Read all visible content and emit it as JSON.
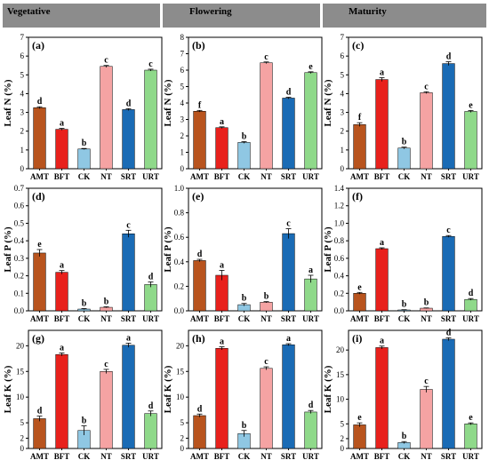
{
  "headers": [
    "Vegetative",
    "Flowering",
    "Maturity"
  ],
  "colors": {
    "header_bg": "#8c8c8c",
    "AMT": "#b8541e",
    "BFT": "#e8211c",
    "CK": "#8fc7e3",
    "NT": "#f5a3a3",
    "SRT": "#1a6bb5",
    "URT": "#8fd98a"
  },
  "chart_data": [
    {
      "type": "bar",
      "panel": "(a)",
      "ylabel": "Leaf N (%)",
      "ylim": [
        0,
        7
      ],
      "yticks": [
        0,
        1,
        2,
        3,
        4,
        5,
        6,
        7
      ],
      "categories": [
        "AMT",
        "BFT",
        "CK",
        "NT",
        "SRT",
        "URT"
      ],
      "values": [
        3.25,
        2.1,
        1.05,
        5.45,
        3.15,
        5.25
      ],
      "errors": [
        0.05,
        0.05,
        0.03,
        0.05,
        0.05,
        0.05
      ],
      "letters": [
        "d",
        "a",
        "b",
        "c",
        "d",
        "c"
      ]
    },
    {
      "type": "bar",
      "panel": "(b)",
      "ylabel": "Leaf N (%)",
      "ylim": [
        0,
        8
      ],
      "yticks": [
        0,
        1,
        2,
        3,
        4,
        5,
        6,
        7,
        8
      ],
      "categories": [
        "AMT",
        "BFT",
        "CK",
        "NT",
        "SRT",
        "URT"
      ],
      "values": [
        3.5,
        2.5,
        1.6,
        6.45,
        4.3,
        5.85
      ],
      "errors": [
        0.05,
        0.05,
        0.05,
        0.05,
        0.05,
        0.05
      ],
      "letters": [
        "f",
        "a",
        "b",
        "c",
        "d",
        "e"
      ]
    },
    {
      "type": "bar",
      "panel": "(c)",
      "ylabel": "Leaf N (%)",
      "ylim": [
        0,
        7
      ],
      "yticks": [
        0,
        1,
        2,
        3,
        4,
        5,
        6,
        7
      ],
      "categories": [
        "AMT",
        "BFT",
        "CK",
        "NT",
        "SRT",
        "URT"
      ],
      "values": [
        2.35,
        4.75,
        1.1,
        4.05,
        5.6,
        3.05
      ],
      "errors": [
        0.1,
        0.1,
        0.05,
        0.05,
        0.1,
        0.05
      ],
      "letters": [
        "f",
        "a",
        "b",
        "c",
        "d",
        "e"
      ]
    },
    {
      "type": "bar",
      "panel": "(d)",
      "ylabel": "Leaf P (%)",
      "ylim": [
        0,
        0.7
      ],
      "yticks": [
        0.0,
        0.1,
        0.2,
        0.3,
        0.4,
        0.5,
        0.6,
        0.7
      ],
      "categories": [
        "AMT",
        "BFT",
        "CK",
        "NT",
        "SRT",
        "URT"
      ],
      "values": [
        0.33,
        0.22,
        0.01,
        0.02,
        0.44,
        0.15
      ],
      "errors": [
        0.02,
        0.01,
        0.003,
        0.003,
        0.02,
        0.015
      ],
      "letters": [
        "e",
        "a",
        "b",
        "b",
        "c",
        "d"
      ]
    },
    {
      "type": "bar",
      "panel": "(e)",
      "ylabel": "Leaf P (%)",
      "ylim": [
        0,
        1.0
      ],
      "yticks": [
        0.0,
        0.2,
        0.4,
        0.6,
        0.8,
        1.0
      ],
      "categories": [
        "AMT",
        "BFT",
        "CK",
        "NT",
        "SRT",
        "URT"
      ],
      "values": [
        0.41,
        0.29,
        0.05,
        0.07,
        0.63,
        0.26
      ],
      "errors": [
        0.01,
        0.04,
        0.01,
        0.005,
        0.04,
        0.03
      ],
      "letters": [
        "d",
        "a",
        "b",
        "b",
        "c",
        "a"
      ]
    },
    {
      "type": "bar",
      "panel": "(f)",
      "ylabel": "Leaf P (%)",
      "ylim": [
        0,
        1.4
      ],
      "yticks": [
        0.0,
        0.2,
        0.4,
        0.6,
        0.8,
        1.0,
        1.2,
        1.4
      ],
      "categories": [
        "AMT",
        "BFT",
        "CK",
        "NT",
        "SRT",
        "URT"
      ],
      "values": [
        0.2,
        0.71,
        0.01,
        0.03,
        0.85,
        0.13
      ],
      "errors": [
        0.01,
        0.01,
        0.003,
        0.003,
        0.01,
        0.01
      ],
      "letters": [
        "e",
        "a",
        "b",
        "b",
        "c",
        "d"
      ]
    },
    {
      "type": "bar",
      "panel": "(g)",
      "ylabel": "Leaf K (%)",
      "ylim": [
        0,
        23
      ],
      "yticks": [
        0,
        2,
        5,
        10,
        15,
        20
      ],
      "categories": [
        "AMT",
        "BFT",
        "CK",
        "NT",
        "SRT",
        "URT"
      ],
      "values": [
        5.8,
        18.3,
        3.5,
        15.0,
        20.1,
        6.8
      ],
      "errors": [
        0.5,
        0.3,
        0.9,
        0.4,
        0.4,
        0.5
      ],
      "letters": [
        "d",
        "a",
        "b",
        "c",
        "a",
        "d"
      ]
    },
    {
      "type": "bar",
      "panel": "(h)",
      "ylabel": "Leaf K (%)",
      "ylim": [
        0,
        23
      ],
      "yticks": [
        0,
        2,
        5,
        10,
        15,
        20
      ],
      "categories": [
        "AMT",
        "BFT",
        "CK",
        "NT",
        "SRT",
        "URT"
      ],
      "values": [
        6.4,
        19.5,
        2.9,
        15.6,
        20.2,
        7.1
      ],
      "errors": [
        0.3,
        0.3,
        0.6,
        0.3,
        0.2,
        0.3
      ],
      "letters": [
        "d",
        "a",
        "b",
        "c",
        "a",
        "d"
      ]
    },
    {
      "type": "bar",
      "panel": "(i)",
      "ylabel": "Leaf K (%)",
      "ylim": [
        0,
        24
      ],
      "yticks": [
        0,
        2,
        5,
        10,
        15,
        20
      ],
      "categories": [
        "AMT",
        "BFT",
        "CK",
        "NT",
        "SRT",
        "URT"
      ],
      "values": [
        4.8,
        20.5,
        1.2,
        12.0,
        22.2,
        5.0
      ],
      "errors": [
        0.4,
        0.3,
        0.2,
        0.6,
        0.3,
        0.2
      ],
      "letters": [
        "e",
        "a",
        "b",
        "c",
        "d",
        "e"
      ]
    }
  ]
}
